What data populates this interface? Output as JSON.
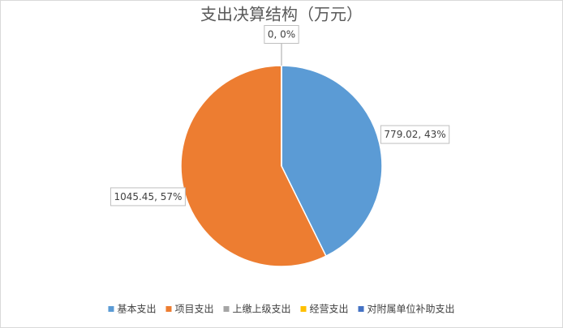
{
  "chart_data": {
    "type": "pie",
    "title": "支出决算结构（万元）",
    "categories": [
      "基本支出",
      "项目支出",
      "上缴上级支出",
      "经营支出",
      "对附属单位补助支出"
    ],
    "values": [
      779.02,
      1045.45,
      0,
      0,
      0
    ],
    "value_labels": [
      "779.02, 43%",
      "1045.45, 57%",
      "0, 0%",
      null,
      null
    ],
    "colors": [
      "#5b9bd5",
      "#ed7d31",
      "#a5a5a5",
      "#ffc000",
      "#4472c4"
    ],
    "legend": "bottom"
  }
}
